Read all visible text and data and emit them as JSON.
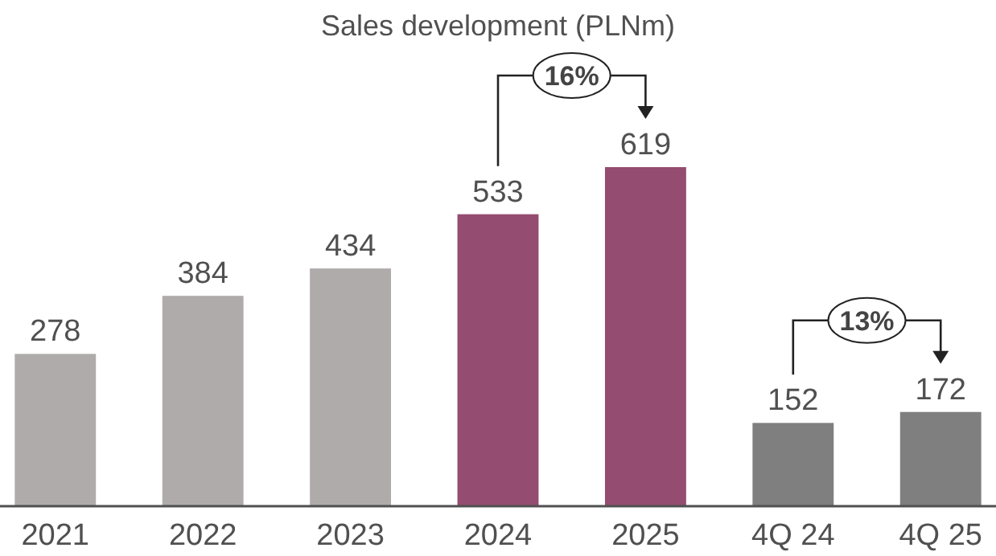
{
  "chart_data": {
    "type": "bar",
    "title": "Sales development (PLNm)",
    "categories": [
      "2021",
      "2022",
      "2023",
      "2024",
      "2025",
      "4Q 24",
      "4Q 25"
    ],
    "values": [
      278,
      384,
      434,
      533,
      619,
      152,
      172
    ],
    "colors": [
      "#b0abab",
      "#b0abab",
      "#b0abab",
      "#944c70",
      "#944c70",
      "#7f7f7f",
      "#7f7f7f"
    ],
    "tick_labels": "x",
    "data_labels": true,
    "annotations": [
      "16%",
      "13%"
    ]
  }
}
